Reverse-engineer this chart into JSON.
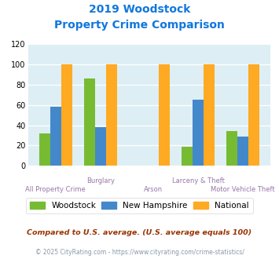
{
  "title_line1": "2019 Woodstock",
  "title_line2": "Property Crime Comparison",
  "categories": [
    "All Property Crime",
    "Burglary",
    "Arson",
    "Larceny & Theft",
    "Motor Vehicle Theft"
  ],
  "woodstock": [
    32,
    86,
    0,
    19,
    34
  ],
  "new_hampshire": [
    58,
    38,
    0,
    65,
    29
  ],
  "national": [
    100,
    100,
    100,
    100,
    100
  ],
  "color_woodstock": "#77bb33",
  "color_nh": "#4488cc",
  "color_national": "#ffaa22",
  "ylim": [
    0,
    120
  ],
  "yticks": [
    0,
    20,
    40,
    60,
    80,
    100,
    120
  ],
  "bg_color": "#ddeef4",
  "legend_labels": [
    "Woodstock",
    "New Hampshire",
    "National"
  ],
  "footnote1": "Compared to U.S. average. (U.S. average equals 100)",
  "footnote2": "© 2025 CityRating.com - https://www.cityrating.com/crime-statistics/",
  "title_color": "#1177dd",
  "cat_label_color": "#9977aa",
  "footnote1_color": "#993300",
  "footnote2_color": "#8899aa",
  "group_positions": [
    0.0,
    0.85,
    1.85,
    2.7,
    3.55
  ],
  "bar_width": 0.21
}
